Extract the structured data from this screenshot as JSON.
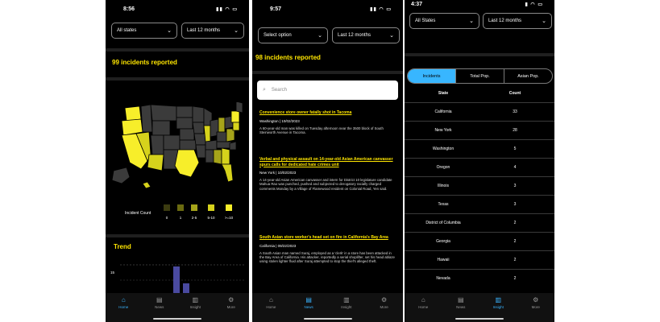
{
  "screen1": {
    "time": "8:56",
    "filter_state": "All states",
    "filter_period": "Last 12 months",
    "headline": "99 incidents reported",
    "legend_title": "Incident Count",
    "legend_labels": [
      "0",
      "1",
      "2-5",
      "5-10",
      ">=10"
    ],
    "legend_colors": [
      "#3b3b10",
      "#6b6b10",
      "#a6a41a",
      "#d6d21c",
      "#f7ee2a"
    ],
    "trend_title": "Trend",
    "trend_y_label": "15",
    "tabs": [
      "Home",
      "News",
      "Insight",
      "More"
    ]
  },
  "screen2": {
    "time": "9:57",
    "filter_state": "Select option",
    "filter_period": "Last 12 months",
    "headline": "98 incidents reported",
    "search_placeholder": "Search",
    "articles": [
      {
        "title": "Convenience store owner fatally shot in Tacoma",
        "meta": "Washington | 10/02/2023",
        "body": "A 60-year-old man was killed on Tuesday afternoon near the 3500 block of South Steinworth Avenue in Tacoma."
      },
      {
        "title": "Verbal and physical assault on 14-year-old Asian American canvasser spurs calls for dedicated hate crimes unit",
        "meta": "New York | 10/02/2023",
        "body": "A 14-year-old Asian American canvasser and intern for District 10 legislature candidate Mahua Rao was punched, pushed and subjected to derogatory racially charged comments Monday by a Village of Flamewood resident on Colonial Road, Yen said."
      },
      {
        "title": "South Asian store worker's head set on fire in California's Bay Area",
        "meta": "California | 09/22/2023",
        "body": "A South Asian man named Suraj, employed as a 'clerk' in a store has been attacked in the Bay Area of California. His attacker, reportedly a serial shoplifter, set his head ablaze using stolen lighter fluid after Suraj attempted to stop the thief's alleged theft."
      }
    ],
    "tabs": [
      "Home",
      "News",
      "Insight",
      "More"
    ]
  },
  "screen3": {
    "time": "4:37",
    "filter_state": "All States",
    "filter_period": "Last 12 months",
    "segments": [
      "Incidents",
      "Total Pop.",
      "Asian Pop."
    ],
    "col_state": "State",
    "col_count": "Count",
    "rows": [
      {
        "state": "California",
        "count": "33"
      },
      {
        "state": "New York",
        "count": "28"
      },
      {
        "state": "Washington",
        "count": "5"
      },
      {
        "state": "Oregon",
        "count": "4"
      },
      {
        "state": "Illinois",
        "count": "3"
      },
      {
        "state": "Texas",
        "count": "3"
      },
      {
        "state": "District of Columbia",
        "count": "2"
      },
      {
        "state": "Georgia",
        "count": "2"
      },
      {
        "state": "Hawaii",
        "count": "2"
      },
      {
        "state": "Nevada",
        "count": "2"
      }
    ],
    "tabs": [
      "Home",
      "News",
      "Insight",
      "More"
    ]
  },
  "colors": {
    "accent_yellow": "#ffe600",
    "accent_blue": "#38b6ff",
    "background": "#000000"
  }
}
